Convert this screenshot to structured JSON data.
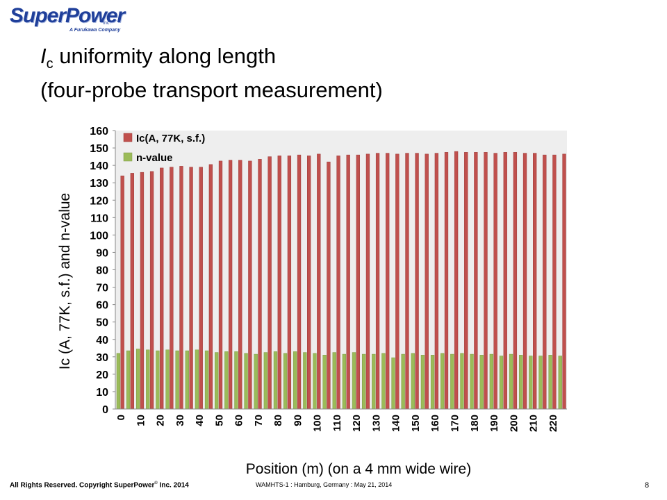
{
  "logo": {
    "name": "SuperPower",
    "inc": "Inc.",
    "tagline": "A Furukawa Company"
  },
  "slide": {
    "title_line1_symbol": "I",
    "title_line1_sub": "c",
    "title_line1_rest": " uniformity along length",
    "title_line2": "(four-probe transport measurement)"
  },
  "footer": {
    "rights": "All Rights Reserved.  Copyright SuperPower",
    "reg": "©",
    "rights_end": " Inc. 2014",
    "conference": "WAMHTS-1 : Hamburg, Germany : May 21, 2014",
    "page": "8"
  },
  "chart_data": {
    "type": "bar",
    "xlabel": "Position (m) (on a 4 mm wide wire)",
    "ylabel": "Ic (A, 77K, s.f.) and n-value",
    "ylim": [
      0,
      160
    ],
    "yticks": [
      0,
      10,
      20,
      30,
      40,
      50,
      60,
      70,
      80,
      90,
      100,
      110,
      120,
      130,
      140,
      150,
      160
    ],
    "xtick_labels": [
      "0",
      "10",
      "20",
      "30",
      "40",
      "50",
      "60",
      "70",
      "80",
      "90",
      "100",
      "110",
      "120",
      "130",
      "140",
      "150",
      "160",
      "170",
      "180",
      "190",
      "200",
      "210",
      "220"
    ],
    "grid": false,
    "legend_position": "top-left",
    "categories": [
      0,
      5,
      10,
      15,
      20,
      25,
      30,
      35,
      40,
      45,
      50,
      55,
      60,
      65,
      70,
      75,
      80,
      85,
      90,
      95,
      100,
      105,
      110,
      115,
      120,
      125,
      130,
      135,
      140,
      145,
      150,
      155,
      160,
      165,
      170,
      175,
      180,
      185,
      190,
      195,
      200,
      205,
      210,
      215,
      220,
      225
    ],
    "series": [
      {
        "name": "Ic(A, 77K, s.f.)",
        "color": "#c0504d",
        "values": [
          134,
          135.5,
          136,
          136.5,
          138.5,
          139,
          139.5,
          139,
          139,
          140.5,
          142.5,
          143,
          143,
          142.5,
          143.5,
          145,
          145.5,
          145.5,
          146,
          145.5,
          146.5,
          142,
          145.5,
          146,
          146,
          146.5,
          147,
          147,
          146.5,
          147,
          147,
          146.5,
          147,
          147.5,
          148,
          147.5,
          147.5,
          147.5,
          147,
          147.5,
          147.5,
          147,
          147,
          146,
          146,
          146.5
        ]
      },
      {
        "name": "n-value",
        "color": "#9bbb59",
        "values": [
          32,
          33.5,
          34.5,
          34,
          33.5,
          34,
          33.5,
          33.5,
          34,
          33.5,
          32.5,
          33,
          33,
          32,
          31.5,
          32.5,
          33,
          32,
          33,
          32.5,
          32,
          31,
          32.5,
          31.5,
          32.5,
          31.5,
          31.5,
          32,
          29.5,
          31.5,
          32,
          31,
          31,
          32,
          31.5,
          32,
          31.5,
          31,
          31.5,
          30.5,
          31.5,
          31,
          30.5,
          30.5,
          31,
          30.5
        ]
      }
    ]
  }
}
